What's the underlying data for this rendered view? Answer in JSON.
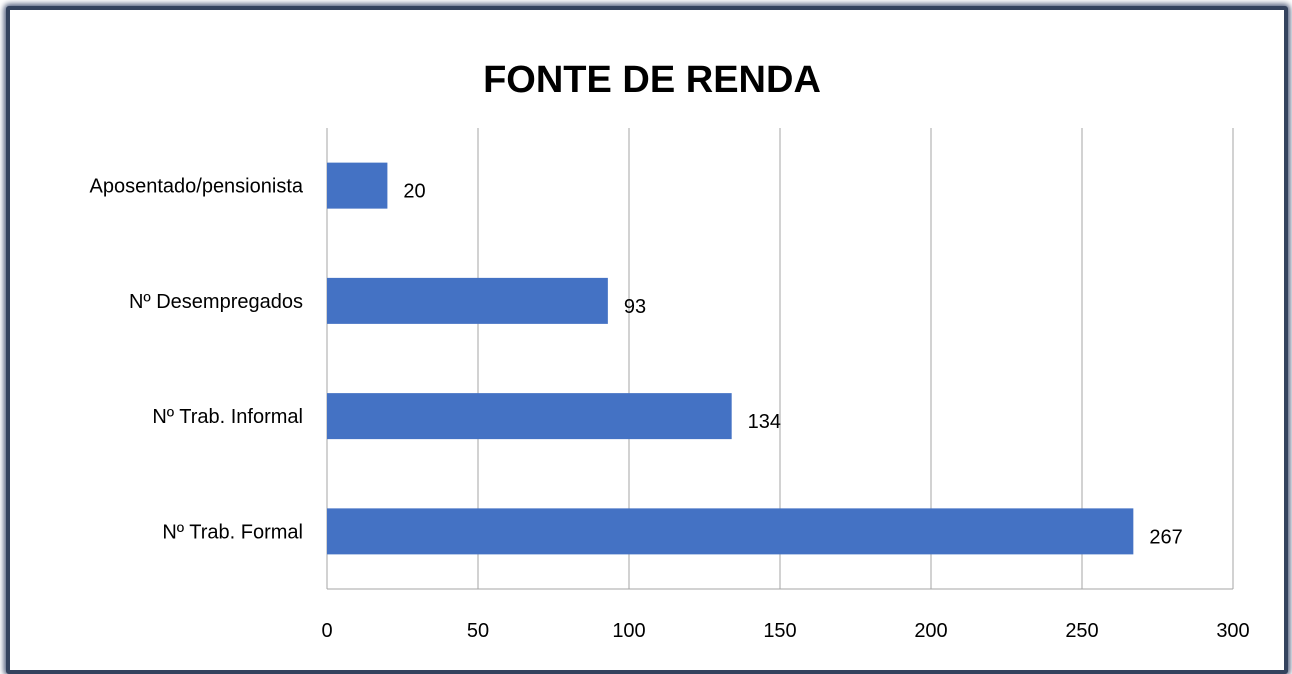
{
  "chart_data": {
    "type": "bar",
    "orientation": "horizontal",
    "title": "FONTE DE RENDA",
    "categories": [
      "Aposentado/pensionista",
      "Nº Desempregados",
      "Nº Trab. Informal",
      "Nº Trab. Formal"
    ],
    "values": [
      20,
      93,
      134,
      267
    ],
    "color": "#4472c4",
    "xlim": [
      0,
      300
    ],
    "xticks": [
      0,
      50,
      100,
      150,
      200,
      250,
      300
    ],
    "grid": true
  }
}
